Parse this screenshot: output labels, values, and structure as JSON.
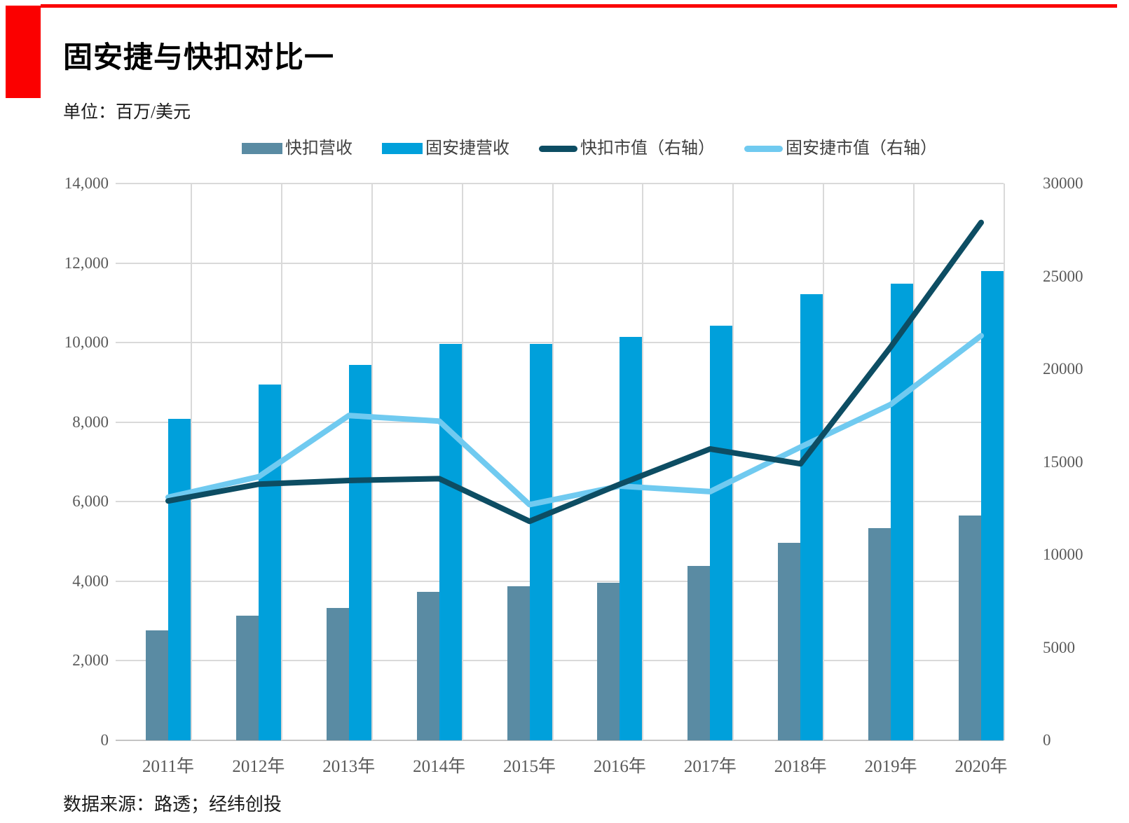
{
  "page": {
    "title": "固安捷与快扣对比一",
    "unit_label": "单位：百万/美元",
    "source_note": "数据来源：路透；经纬创投",
    "accent_color": "#fb0000"
  },
  "chart_data": {
    "type": "combo: grouped bars (left axis) + lines (right axis)",
    "categories": [
      "2011年",
      "2012年",
      "2013年",
      "2014年",
      "2015年",
      "2016年",
      "2017年",
      "2018年",
      "2019年",
      "2020年"
    ],
    "series": [
      {
        "name": "快扣营收",
        "type": "bar",
        "axis": "left",
        "color": "#5a8ba3",
        "values": [
          2767,
          3134,
          3326,
          3734,
          3869,
          3962,
          4391,
          4965,
          5334,
          5647
        ]
      },
      {
        "name": "固安捷营收",
        "type": "bar",
        "axis": "left",
        "color": "#00a0db",
        "values": [
          8078,
          8950,
          9438,
          9965,
          9973,
          10137,
          10425,
          11221,
          11486,
          11797
        ]
      },
      {
        "name": "快扣市值（右轴）",
        "type": "line",
        "axis": "right",
        "color": "#0d4d63",
        "values": [
          12900,
          13800,
          14000,
          14100,
          11800,
          13800,
          15700,
          14900,
          21200,
          27900
        ]
      },
      {
        "name": "固安捷市值（右轴）",
        "type": "line",
        "axis": "right",
        "color": "#70caf0",
        "values": [
          13100,
          14200,
          17500,
          17200,
          12700,
          13700,
          13400,
          15800,
          18100,
          21800
        ]
      }
    ],
    "left_axis": {
      "min": 0,
      "max": 14000,
      "step": 2000,
      "tick_labels": [
        "0",
        "2,000",
        "4,000",
        "6,000",
        "8,000",
        "10,000",
        "12,000",
        "14,000"
      ]
    },
    "right_axis": {
      "min": 0,
      "max": 30000,
      "step": 5000,
      "tick_labels": [
        "0",
        "5000",
        "10000",
        "15000",
        "20000",
        "25000",
        "30000"
      ]
    },
    "grid": {
      "horizontal": true,
      "vertical": true
    },
    "legend_position": "top-center",
    "gridline_color": "#d9d9d9",
    "tick_color": "#595959"
  }
}
